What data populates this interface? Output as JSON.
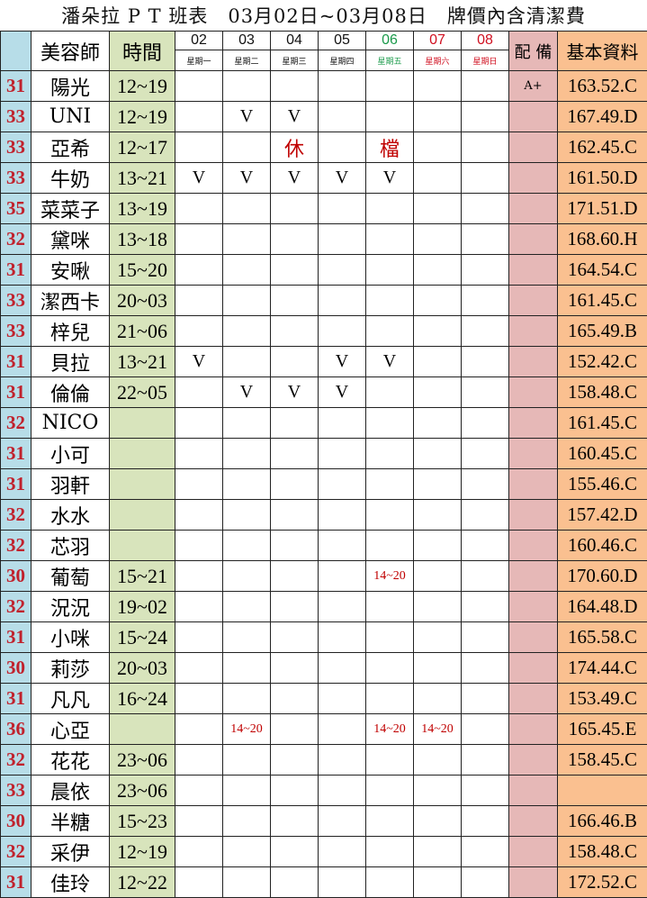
{
  "title": "潘朵拉 P T 班表　03月02日~03月08日　牌價內含清潔費",
  "headers": {
    "name": "美容師",
    "time": "時間",
    "equip": "配 備",
    "info": "基本資料"
  },
  "days": [
    {
      "date": "02",
      "weekday": "星期一",
      "color": "#111111"
    },
    {
      "date": "03",
      "weekday": "星期二",
      "color": "#111111"
    },
    {
      "date": "04",
      "weekday": "星期三",
      "color": "#111111"
    },
    {
      "date": "05",
      "weekday": "星期四",
      "color": "#111111"
    },
    {
      "date": "06",
      "weekday": "星期五",
      "color": "#1a9a4a"
    },
    {
      "date": "07",
      "weekday": "星期六",
      "color": "#d01020"
    },
    {
      "date": "08",
      "weekday": "星期日",
      "color": "#d01020"
    }
  ],
  "rows": [
    {
      "num": "31",
      "name": "陽光",
      "time": "12~19",
      "days": [
        "",
        "",
        "",
        "",
        "",
        "",
        ""
      ],
      "equip": "A+",
      "info": "163.52.C"
    },
    {
      "num": "33",
      "name": "UNI",
      "time": "12~19",
      "days": [
        "",
        "V",
        "V",
        "",
        "",
        "",
        ""
      ],
      "equip": "",
      "info": "167.49.D"
    },
    {
      "num": "33",
      "name": "亞希",
      "time": "12~17",
      "days": [
        "",
        "",
        "休",
        "",
        "檔",
        "",
        ""
      ],
      "equip": "",
      "info": "162.45.C"
    },
    {
      "num": "33",
      "name": "牛奶",
      "time": "13~21",
      "days": [
        "V",
        "V",
        "V",
        "V",
        "V",
        "",
        ""
      ],
      "equip": "",
      "info": "161.50.D"
    },
    {
      "num": "35",
      "name": "菜菜子",
      "time": "13~19",
      "days": [
        "",
        "",
        "",
        "",
        "",
        "",
        ""
      ],
      "equip": "",
      "info": "171.51.D"
    },
    {
      "num": "32",
      "name": "黛咪",
      "time": "13~18",
      "days": [
        "",
        "",
        "",
        "",
        "",
        "",
        ""
      ],
      "equip": "",
      "info": "168.60.H"
    },
    {
      "num": "31",
      "name": "安啾",
      "time": "15~20",
      "days": [
        "",
        "",
        "",
        "",
        "",
        "",
        ""
      ],
      "equip": "",
      "info": "164.54.C"
    },
    {
      "num": "33",
      "name": "潔西卡",
      "time": "20~03",
      "days": [
        "",
        "",
        "",
        "",
        "",
        "",
        ""
      ],
      "equip": "",
      "info": "161.45.C"
    },
    {
      "num": "33",
      "name": "梓兒",
      "time": "21~06",
      "days": [
        "",
        "",
        "",
        "",
        "",
        "",
        ""
      ],
      "equip": "",
      "info": "165.49.B"
    },
    {
      "num": "31",
      "name": "貝拉",
      "time": "13~21",
      "days": [
        "V",
        "",
        "",
        "V",
        "V",
        "",
        ""
      ],
      "equip": "",
      "info": "152.42.C"
    },
    {
      "num": "31",
      "name": "倫倫",
      "time": "22~05",
      "days": [
        "",
        "V",
        "V",
        "V",
        "",
        "",
        ""
      ],
      "equip": "",
      "info": "158.48.C"
    },
    {
      "num": "32",
      "name": "NICO",
      "time": "",
      "days": [
        "",
        "",
        "",
        "",
        "",
        "",
        ""
      ],
      "equip": "",
      "info": "161.45.C"
    },
    {
      "num": "31",
      "name": "小可",
      "time": "",
      "days": [
        "",
        "",
        "",
        "",
        "",
        "",
        ""
      ],
      "equip": "",
      "info": "160.45.C"
    },
    {
      "num": "31",
      "name": "羽軒",
      "time": "",
      "days": [
        "",
        "",
        "",
        "",
        "",
        "",
        ""
      ],
      "equip": "",
      "info": "155.46.C"
    },
    {
      "num": "32",
      "name": "水水",
      "time": "",
      "days": [
        "",
        "",
        "",
        "",
        "",
        "",
        ""
      ],
      "equip": "",
      "info": "157.42.D"
    },
    {
      "num": "32",
      "name": "芯羽",
      "time": "",
      "days": [
        "",
        "",
        "",
        "",
        "",
        "",
        ""
      ],
      "equip": "",
      "info": "160.46.C"
    },
    {
      "num": "30",
      "name": "葡萄",
      "time": "15~21",
      "days": [
        "",
        "",
        "",
        "",
        "14~20",
        "",
        ""
      ],
      "equip": "",
      "info": "170.60.D"
    },
    {
      "num": "32",
      "name": "況況",
      "time": "19~02",
      "days": [
        "",
        "",
        "",
        "",
        "",
        "",
        ""
      ],
      "equip": "",
      "info": "164.48.D"
    },
    {
      "num": "31",
      "name": "小咪",
      "time": "15~24",
      "days": [
        "",
        "",
        "",
        "",
        "",
        "",
        ""
      ],
      "equip": "",
      "info": "165.58.C"
    },
    {
      "num": "30",
      "name": "莉莎",
      "time": "20~03",
      "days": [
        "",
        "",
        "",
        "",
        "",
        "",
        ""
      ],
      "equip": "",
      "info": "174.44.C"
    },
    {
      "num": "31",
      "name": "凡凡",
      "time": "16~24",
      "days": [
        "",
        "",
        "",
        "",
        "",
        "",
        ""
      ],
      "equip": "",
      "info": "153.49.C"
    },
    {
      "num": "36",
      "name": "心亞",
      "time": "",
      "days": [
        "",
        "14~20",
        "",
        "",
        "14~20",
        "14~20",
        ""
      ],
      "equip": "",
      "info": "165.45.E"
    },
    {
      "num": "32",
      "name": "花花",
      "time": "23~06",
      "days": [
        "",
        "",
        "",
        "",
        "",
        "",
        ""
      ],
      "equip": "",
      "info": "158.45.C"
    },
    {
      "num": "33",
      "name": "晨依",
      "time": "23~06",
      "days": [
        "",
        "",
        "",
        "",
        "",
        "",
        ""
      ],
      "equip": "",
      "info": ""
    },
    {
      "num": "30",
      "name": "半糖",
      "time": "15~23",
      "days": [
        "",
        "",
        "",
        "",
        "",
        "",
        ""
      ],
      "equip": "",
      "info": "166.46.B"
    },
    {
      "num": "32",
      "name": "采伊",
      "time": "12~19",
      "days": [
        "",
        "",
        "",
        "",
        "",
        "",
        ""
      ],
      "equip": "",
      "info": "158.48.C"
    },
    {
      "num": "31",
      "name": "佳玲",
      "time": "12~22",
      "days": [
        "",
        "",
        "",
        "",
        "",
        "",
        ""
      ],
      "equip": "",
      "info": "172.52.C"
    }
  ]
}
